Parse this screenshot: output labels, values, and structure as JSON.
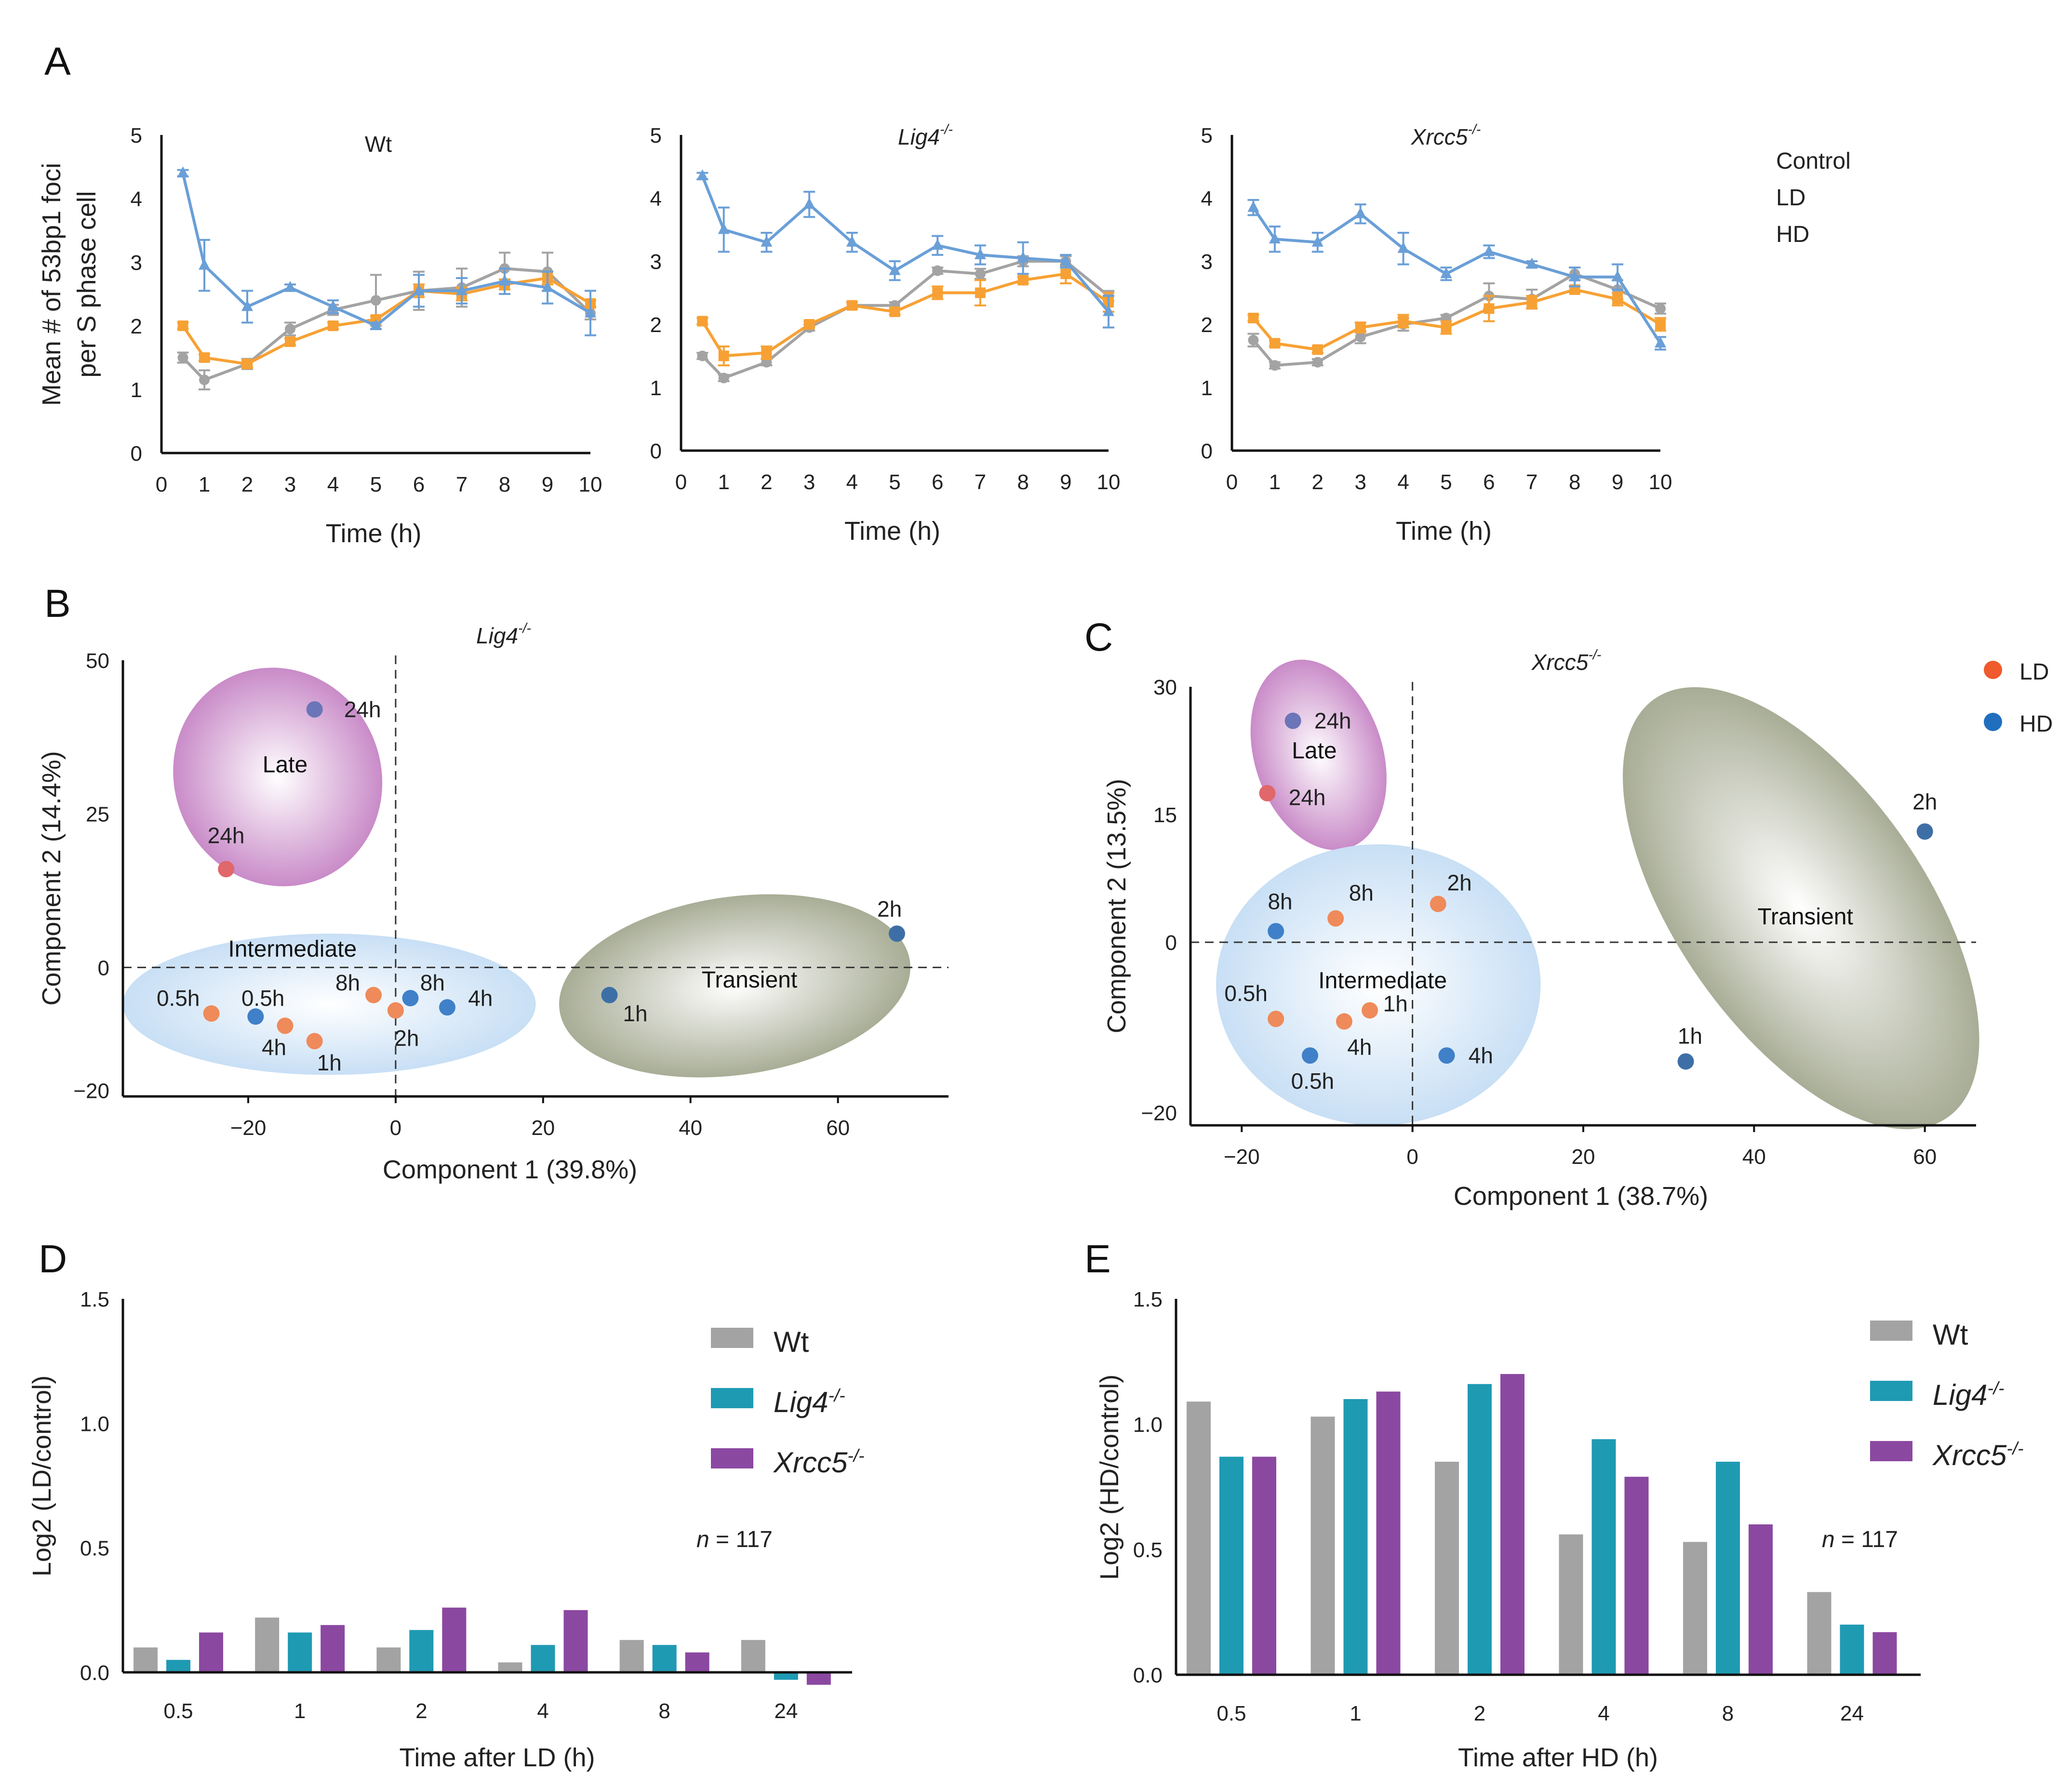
{
  "colors": {
    "control": "#a3a3a3",
    "ld": "#f7a134",
    "hd": "#6a9fd7",
    "wt_bar": "#a3a3a3",
    "lig4_bar": "#1f9ab3",
    "xrcc5_bar": "#8b48a1",
    "ld_point": "#ef8a5a",
    "hd_point": "#3f80c8",
    "late_fill": "#c98bc8",
    "intermediate_fill": "#c8dff5",
    "transient_fill": "#a8ad96"
  },
  "panel_letters": {
    "A": "A",
    "B": "B",
    "C": "C",
    "D": "D",
    "E": "E"
  },
  "chart_data": [
    {
      "id": "A1",
      "type": "line",
      "title": "Wt",
      "xlabel": "Time (h)",
      "ylabel_line1": "Mean # of 53bp1 foci",
      "ylabel_line2": "per S phase cell",
      "xlim": [
        0,
        10
      ],
      "ylim": [
        0,
        5
      ],
      "xticks": [
        "0",
        "1",
        "2",
        "3",
        "4",
        "5",
        "6",
        "7",
        "8",
        "9",
        "10"
      ],
      "yticks": [
        "0",
        "1",
        "2",
        "3",
        "4",
        "5"
      ],
      "x": [
        0.5,
        1,
        2,
        3,
        4,
        5,
        6,
        7,
        8,
        9,
        10
      ],
      "series": [
        {
          "name": "Control",
          "key": "control",
          "marker": "circle",
          "values": [
            1.5,
            1.15,
            1.4,
            1.95,
            2.25,
            2.4,
            2.55,
            2.6,
            2.9,
            2.85,
            2.2
          ],
          "errors": [
            0.08,
            0.15,
            0.08,
            0.1,
            0.08,
            0.4,
            0.3,
            0.3,
            0.25,
            0.3,
            0.1
          ]
        },
        {
          "name": "LD",
          "key": "ld",
          "marker": "square",
          "values": [
            2.0,
            1.5,
            1.4,
            1.75,
            2.0,
            2.1,
            2.55,
            2.5,
            2.65,
            2.75,
            2.35
          ],
          "errors": [
            0.05,
            0.05,
            0.05,
            0.05,
            0.05,
            0.05,
            0.1,
            0.1,
            0.08,
            0.1,
            0.05
          ]
        },
        {
          "name": "HD",
          "key": "hd",
          "marker": "triangle",
          "values": [
            4.4,
            2.95,
            2.3,
            2.6,
            2.3,
            2.0,
            2.55,
            2.55,
            2.7,
            2.6,
            2.2
          ],
          "errors": [
            0.05,
            0.4,
            0.25,
            0.05,
            0.1,
            0.05,
            0.25,
            0.2,
            0.2,
            0.25,
            0.35
          ]
        }
      ]
    },
    {
      "id": "A2",
      "type": "line",
      "title": "Lig4",
      "title_sup": "-/-",
      "xlabel": "Time (h)",
      "xlim": [
        0,
        10
      ],
      "ylim": [
        0,
        5
      ],
      "xticks": [
        "0",
        "1",
        "2",
        "3",
        "4",
        "5",
        "6",
        "7",
        "8",
        "9",
        "10"
      ],
      "yticks": [
        "0",
        "1",
        "2",
        "3",
        "4",
        "5"
      ],
      "x": [
        0.5,
        1,
        2,
        3,
        4,
        5,
        6,
        7,
        8,
        9,
        10
      ],
      "series": [
        {
          "name": "Control",
          "key": "control",
          "marker": "circle",
          "values": [
            1.5,
            1.15,
            1.4,
            1.95,
            2.3,
            2.3,
            2.85,
            2.8,
            3.0,
            3.0,
            2.45
          ],
          "errors": [
            0.05,
            0.05,
            0.05,
            0.05,
            0.05,
            0.05,
            0.05,
            0.08,
            0.08,
            0.08,
            0.08
          ]
        },
        {
          "name": "LD",
          "key": "ld",
          "marker": "square",
          "values": [
            2.05,
            1.5,
            1.55,
            2.0,
            2.3,
            2.2,
            2.5,
            2.5,
            2.7,
            2.8,
            2.35
          ],
          "errors": [
            0.05,
            0.15,
            0.1,
            0.05,
            0.05,
            0.05,
            0.1,
            0.2,
            0.05,
            0.15,
            0.15
          ]
        },
        {
          "name": "HD",
          "key": "hd",
          "marker": "triangle",
          "values": [
            4.35,
            3.5,
            3.3,
            3.9,
            3.3,
            2.85,
            3.25,
            3.1,
            3.05,
            3.0,
            2.2
          ],
          "errors": [
            0.05,
            0.35,
            0.15,
            0.2,
            0.15,
            0.15,
            0.15,
            0.15,
            0.25,
            0.1,
            0.25
          ]
        }
      ]
    },
    {
      "id": "A3",
      "type": "line",
      "title": "Xrcc5",
      "title_sup": "-/-",
      "xlabel": "Time (h)",
      "xlim": [
        0,
        10
      ],
      "ylim": [
        0,
        5
      ],
      "xticks": [
        "0",
        "1",
        "2",
        "3",
        "4",
        "5",
        "6",
        "7",
        "8",
        "9",
        "10"
      ],
      "yticks": [
        "0",
        "1",
        "2",
        "3",
        "4",
        "5"
      ],
      "x": [
        0.5,
        1,
        2,
        3,
        4,
        5,
        6,
        7,
        8,
        9,
        10
      ],
      "series": [
        {
          "name": "Control",
          "key": "control",
          "marker": "circle",
          "values": [
            1.75,
            1.35,
            1.4,
            1.8,
            2.0,
            2.1,
            2.45,
            2.4,
            2.8,
            2.55,
            2.25
          ],
          "errors": [
            0.1,
            0.05,
            0.05,
            0.1,
            0.1,
            0.05,
            0.2,
            0.15,
            0.1,
            0.15,
            0.08
          ]
        },
        {
          "name": "LD",
          "key": "ld",
          "marker": "square",
          "values": [
            2.1,
            1.7,
            1.6,
            1.95,
            2.05,
            1.95,
            2.25,
            2.35,
            2.55,
            2.4,
            2.0
          ],
          "errors": [
            0.05,
            0.05,
            0.05,
            0.08,
            0.1,
            0.1,
            0.2,
            0.1,
            0.05,
            0.1,
            0.1
          ]
        },
        {
          "name": "HD",
          "key": "hd",
          "marker": "triangle",
          "values": [
            3.85,
            3.35,
            3.3,
            3.75,
            3.2,
            2.8,
            3.15,
            2.95,
            2.75,
            2.75,
            1.7
          ],
          "errors": [
            0.12,
            0.2,
            0.15,
            0.15,
            0.25,
            0.1,
            0.1,
            0.05,
            0.15,
            0.2,
            0.1
          ]
        }
      ]
    },
    {
      "id": "B",
      "type": "scatter",
      "title": "Lig4",
      "title_sup": "-/-",
      "xlabel": "Component 1 (39.8%)",
      "ylabel": "Component 2 (14.4%)",
      "xlim": [
        -37,
        75
      ],
      "ylim": [
        -21,
        50
      ],
      "xticks": [
        -20,
        0,
        20,
        40,
        60
      ],
      "xtick_labels": [
        "−20",
        "0",
        "20",
        "40",
        "60"
      ],
      "yticks": [
        -20,
        0,
        25,
        50
      ],
      "ytick_labels": [
        "−20",
        "0",
        "25",
        "50"
      ],
      "clusters": [
        {
          "name": "Late",
          "cx": -16,
          "cy": 31,
          "rx": 14,
          "ry": 18,
          "rot": 25,
          "fill": "late",
          "label_x": -15,
          "label_y": 33
        },
        {
          "name": "Intermediate",
          "cx": -9,
          "cy": -6,
          "rx": 28,
          "ry": 11.5,
          "rot": 0,
          "fill": "intermediate",
          "label_x": -14,
          "label_y": 3
        },
        {
          "name": "Transient",
          "cx": 46,
          "cy": -3,
          "rx": 24,
          "ry": 14.5,
          "rot": 8,
          "fill": "transient",
          "label_x": 48,
          "label_y": -2
        }
      ],
      "points": [
        {
          "label": "24h",
          "x": -11,
          "y": 42,
          "group": "HD",
          "color": "#6b75b8",
          "lx": 4,
          "ly": 0,
          "anchor": "start"
        },
        {
          "label": "24h",
          "x": -23,
          "y": 16,
          "group": "LD",
          "color": "#e0676a",
          "lx": 0,
          "ly": 5.5,
          "anchor": "middle"
        },
        {
          "label": "2h",
          "x": 68,
          "y": 5.5,
          "group": "HD",
          "color": "#3d6fa6",
          "lx": -1,
          "ly": 4,
          "anchor": "middle"
        },
        {
          "label": "1h",
          "x": 29,
          "y": -4.5,
          "group": "HD",
          "color": "#3d6fa6",
          "lx": 3.5,
          "ly": -3,
          "anchor": "middle"
        },
        {
          "label": "0.5h",
          "x": -25,
          "y": -7.5,
          "group": "LD",
          "color": "#ef8a5a",
          "lx": -4.5,
          "ly": 2.5,
          "anchor": "middle"
        },
        {
          "label": "0.5h",
          "x": -19,
          "y": -8,
          "group": "HD",
          "color": "#3f80c8",
          "lx": 1,
          "ly": 3,
          "anchor": "middle"
        },
        {
          "label": "4h",
          "x": -15,
          "y": -9.5,
          "group": "LD",
          "color": "#ef8a5a",
          "lx": -1.5,
          "ly": -3.5,
          "anchor": "middle"
        },
        {
          "label": "1h",
          "x": -11,
          "y": -12,
          "group": "LD",
          "color": "#ef8a5a",
          "lx": 2,
          "ly": -3.5,
          "anchor": "middle"
        },
        {
          "label": "8h",
          "x": -3,
          "y": -4.5,
          "group": "LD",
          "color": "#ef8a5a",
          "lx": -3.5,
          "ly": 2,
          "anchor": "middle"
        },
        {
          "label": "2h",
          "x": 0,
          "y": -7,
          "group": "LD",
          "color": "#ef8a5a",
          "lx": 1.5,
          "ly": -4.5,
          "anchor": "middle"
        },
        {
          "label": "8h",
          "x": 2,
          "y": -5,
          "group": "HD",
          "color": "#3f80c8",
          "lx": 3,
          "ly": 2.5,
          "anchor": "middle"
        },
        {
          "label": "4h",
          "x": 7,
          "y": -6.5,
          "group": "HD",
          "color": "#3f80c8",
          "lx": 4.5,
          "ly": 1.5,
          "anchor": "middle"
        }
      ]
    },
    {
      "id": "C",
      "type": "scatter",
      "title": "Xrcc5",
      "title_sup": "-/-",
      "xlabel": "Component 1 (38.7%)",
      "ylabel": "Component 2 (13.5%)",
      "xlim": [
        -26,
        66
      ],
      "ylim": [
        -21.5,
        30
      ],
      "xticks": [
        -20,
        0,
        20,
        40,
        60
      ],
      "xtick_labels": [
        "−20",
        "0",
        "20",
        "40",
        "60"
      ],
      "yticks": [
        -20,
        0,
        15,
        30
      ],
      "ytick_labels": [
        "−20",
        "0",
        "15",
        "30"
      ],
      "legend": [
        {
          "label": "LD",
          "color": "#f05a2c"
        },
        {
          "label": "HD",
          "color": "#1f6fbe"
        }
      ],
      "clusters": [
        {
          "name": "Late",
          "cx": -11,
          "cy": 22,
          "rx": 7.5,
          "ry": 11.5,
          "rot": 18,
          "fill": "late",
          "label_x": -11.5,
          "label_y": 22.5
        },
        {
          "name": "Intermediate",
          "cx": -4,
          "cy": -5,
          "rx": 19,
          "ry": 16.5,
          "rot": 0,
          "fill": "intermediate",
          "label_x": -3.5,
          "label_y": -4.5
        },
        {
          "name": "Transient",
          "cx": 45.5,
          "cy": 4,
          "rx": 14.5,
          "ry": 30,
          "rot": 35,
          "fill": "transient",
          "label_x": 46,
          "label_y": 3
        }
      ],
      "points": [
        {
          "label": "24h",
          "x": -14,
          "y": 26,
          "group": "HD",
          "color": "#6b75b8",
          "lx": 2.5,
          "ly": 0,
          "anchor": "start"
        },
        {
          "label": "24h",
          "x": -17,
          "y": 17.5,
          "group": "LD",
          "color": "#e0676a",
          "lx": 2.5,
          "ly": -0.5,
          "anchor": "start"
        },
        {
          "label": "2h",
          "x": 60,
          "y": 13,
          "group": "HD",
          "color": "#3d6fa6",
          "lx": 0,
          "ly": 3.5,
          "anchor": "middle"
        },
        {
          "label": "1h",
          "x": 32,
          "y": -14,
          "group": "HD",
          "color": "#3d6fa6",
          "lx": 0.5,
          "ly": 3,
          "anchor": "middle"
        },
        {
          "label": "8h",
          "x": -16,
          "y": 1.3,
          "group": "HD",
          "color": "#3f80c8",
          "lx": 0.5,
          "ly": 3.5,
          "anchor": "middle"
        },
        {
          "label": "8h",
          "x": -9,
          "y": 2.8,
          "group": "LD",
          "color": "#ef8a5a",
          "lx": 3,
          "ly": 3,
          "anchor": "middle"
        },
        {
          "label": "2h",
          "x": 3,
          "y": 4.5,
          "group": "LD",
          "color": "#ef8a5a",
          "lx": 2.5,
          "ly": 2.5,
          "anchor": "middle"
        },
        {
          "label": "0.5h",
          "x": -16,
          "y": -9,
          "group": "LD",
          "color": "#ef8a5a",
          "lx": -3.5,
          "ly": 3,
          "anchor": "middle"
        },
        {
          "label": "1h",
          "x": -5,
          "y": -8,
          "group": "LD",
          "color": "#ef8a5a",
          "lx": 3,
          "ly": 0.8,
          "anchor": "middle"
        },
        {
          "label": "4h",
          "x": -8,
          "y": -9.3,
          "group": "LD",
          "color": "#ef8a5a",
          "lx": 1.8,
          "ly": -3,
          "anchor": "middle"
        },
        {
          "label": "0.5h",
          "x": -12,
          "y": -13.3,
          "group": "HD",
          "color": "#3f80c8",
          "lx": 0.3,
          "ly": -3,
          "anchor": "middle"
        },
        {
          "label": "4h",
          "x": 4,
          "y": -13.3,
          "group": "HD",
          "color": "#3f80c8",
          "lx": 4,
          "ly": 0,
          "anchor": "middle"
        }
      ]
    },
    {
      "id": "D",
      "type": "bar",
      "xlabel": "Time after LD (h)",
      "ylabel": "Log2 (LD/control)",
      "ylim": [
        0,
        1.5
      ],
      "yticks": [
        "0.0",
        "0.5",
        "1.0",
        "1.5"
      ],
      "categories": [
        "0.5",
        "1",
        "2",
        "4",
        "8",
        "24"
      ],
      "n_label_prefix": "n",
      "n_label_value": " = 117",
      "series": [
        {
          "name": "Wt",
          "sup": "",
          "key": "wt_bar",
          "values": [
            0.1,
            0.22,
            0.1,
            0.04,
            0.13,
            0.13
          ]
        },
        {
          "name": "Lig4",
          "sup": "-/-",
          "key": "lig4_bar",
          "values": [
            0.05,
            0.16,
            0.17,
            0.11,
            0.11,
            -0.03
          ]
        },
        {
          "name": "Xrcc5",
          "sup": "-/-",
          "key": "xrcc5_bar",
          "values": [
            0.16,
            0.19,
            0.26,
            0.25,
            0.08,
            -0.05
          ]
        }
      ]
    },
    {
      "id": "E",
      "type": "bar",
      "xlabel": "Time after HD (h)",
      "ylabel": "Log2 (HD/control)",
      "ylim": [
        0,
        1.5
      ],
      "yticks": [
        "0.0",
        "0.5",
        "1.0",
        "1.5"
      ],
      "categories": [
        "0.5",
        "1",
        "2",
        "4",
        "8",
        "24"
      ],
      "n_label_prefix": "n",
      "n_label_value": " = 117",
      "series": [
        {
          "name": "Wt",
          "sup": "",
          "key": "wt_bar",
          "values": [
            1.09,
            1.03,
            0.85,
            0.56,
            0.53,
            0.33
          ]
        },
        {
          "name": "Lig4",
          "sup": "-/-",
          "key": "lig4_bar",
          "values": [
            0.87,
            1.1,
            1.16,
            0.94,
            0.85,
            0.2
          ]
        },
        {
          "name": "Xrcc5",
          "sup": "-/-",
          "key": "xrcc5_bar",
          "values": [
            0.87,
            1.13,
            1.2,
            0.79,
            0.6,
            0.17
          ]
        }
      ]
    }
  ]
}
